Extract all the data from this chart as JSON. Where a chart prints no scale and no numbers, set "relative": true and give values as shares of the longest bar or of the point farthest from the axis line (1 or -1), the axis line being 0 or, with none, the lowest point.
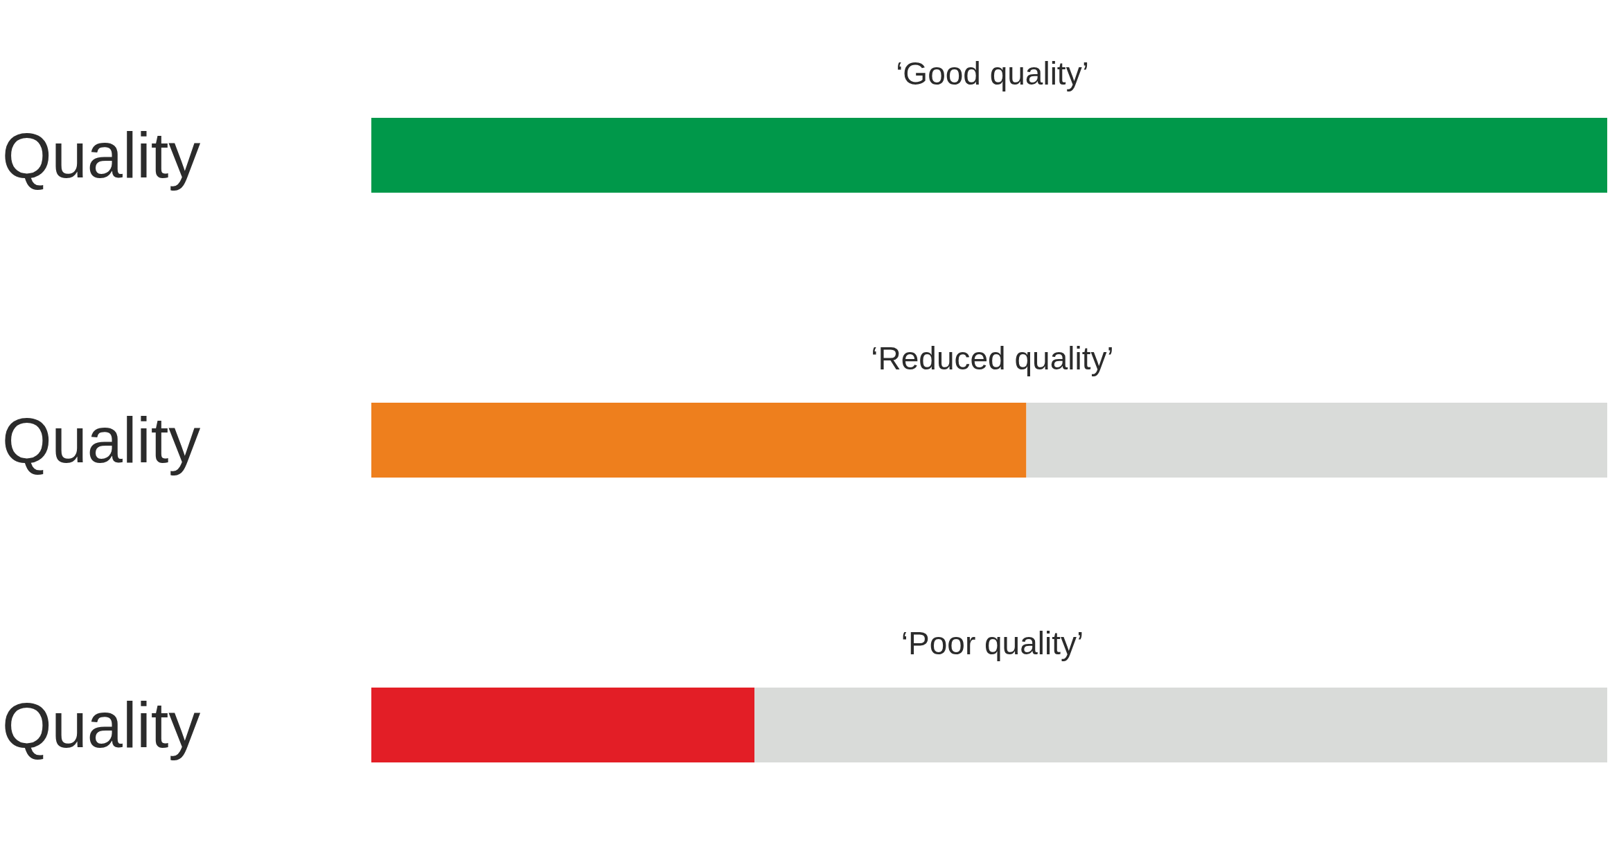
{
  "chart_data": [
    {
      "type": "bar",
      "orientation": "horizontal",
      "stacked": true,
      "relative": true,
      "title": "‘Good quality’",
      "categories": [
        "Quality"
      ],
      "series": [
        {
          "color": "#00984a",
          "values": [
            1
          ]
        }
      ]
    },
    {
      "type": "bar",
      "orientation": "horizontal",
      "stacked": true,
      "relative": true,
      "title": "‘Reduced quality’",
      "categories": [
        "Quality"
      ],
      "series": [
        {
          "color": "#ee7f1d",
          "values": [
            0.53
          ]
        },
        {
          "color": "#d9dbd9",
          "values": [
            0.47
          ]
        }
      ]
    },
    {
      "type": "bar",
      "orientation": "horizontal",
      "stacked": true,
      "relative": true,
      "title": "‘Poor quality’",
      "categories": [
        "Quality"
      ],
      "series": [
        {
          "color": "#e31e26",
          "values": [
            0.31
          ]
        },
        {
          "color": "#d9dbd9",
          "values": [
            0.69
          ]
        }
      ]
    }
  ]
}
